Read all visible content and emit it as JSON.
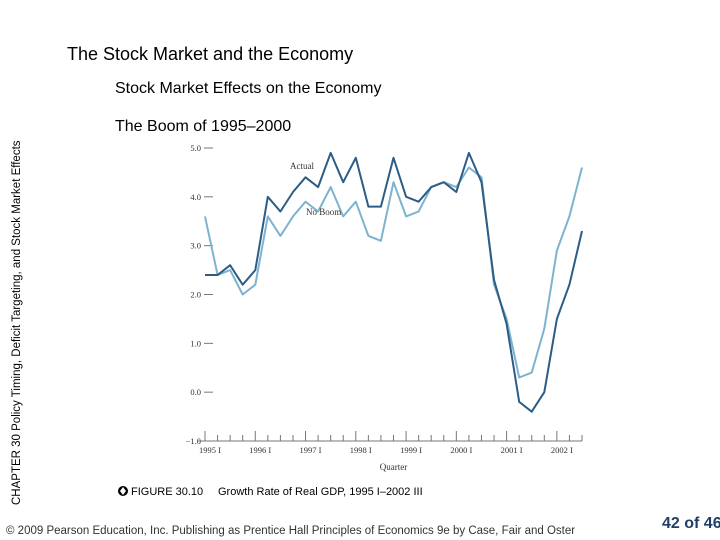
{
  "slide": {
    "title": "The Stock Market and the Economy",
    "subtitle": "Stock Market Effects on the Economy",
    "heading": "The Boom of 1995–2000",
    "side_text": "CHAPTER 30 Policy Timing, Deficit Targeting, and Stock Market Effects",
    "figure_label": "FIGURE 30.10",
    "figure_caption": "Growth Rate of Real GDP, 1995 I–2002 III",
    "footer": "© 2009 Pearson Education, Inc. Publishing as Prentice Hall Principles of Economics 9e by Case, Fair and Oster",
    "page_number": "42 of 46"
  },
  "chart_data": {
    "type": "line",
    "xlabel": "Quarter",
    "categories": [
      "1995 I",
      null,
      null,
      null,
      "1996 I",
      null,
      null,
      null,
      "1997 I",
      null,
      null,
      null,
      "1998 I",
      null,
      null,
      null,
      "1999 I",
      null,
      null,
      null,
      "2000 I",
      null,
      null,
      null,
      "2001 I",
      null,
      null,
      null,
      "2002 I",
      null,
      null
    ],
    "series": [
      {
        "name": "Actual",
        "color": "#2b5d86",
        "values": [
          2.4,
          2.4,
          2.6,
          2.2,
          2.5,
          4.0,
          3.7,
          4.1,
          4.4,
          4.2,
          4.9,
          4.3,
          4.8,
          3.8,
          3.8,
          4.8,
          4.0,
          3.9,
          4.2,
          4.3,
          4.1,
          4.9,
          4.3,
          2.3,
          1.4,
          -0.2,
          -0.4,
          0.0,
          1.5,
          2.2,
          3.3
        ]
      },
      {
        "name": "No Boom",
        "color": "#7db3cf",
        "values": [
          3.6,
          2.4,
          2.5,
          2.0,
          2.2,
          3.6,
          3.2,
          3.6,
          3.9,
          3.7,
          4.2,
          3.6,
          3.9,
          3.2,
          3.1,
          4.3,
          3.6,
          3.7,
          4.2,
          4.3,
          4.2,
          4.6,
          4.4,
          2.2,
          1.5,
          0.3,
          0.4,
          1.3,
          2.9,
          3.6,
          4.6
        ]
      }
    ],
    "ylim": [
      -1,
      5
    ],
    "yticks": [
      {
        "value": -1,
        "label": "−1.0"
      },
      {
        "value": 0,
        "label": "0.0"
      },
      {
        "value": 1,
        "label": "1.0"
      },
      {
        "value": 2,
        "label": "2.0"
      },
      {
        "value": 3,
        "label": "3.0"
      },
      {
        "value": 4,
        "label": "4.0"
      },
      {
        "value": 5,
        "label": "5.0"
      }
    ],
    "grid": false
  }
}
